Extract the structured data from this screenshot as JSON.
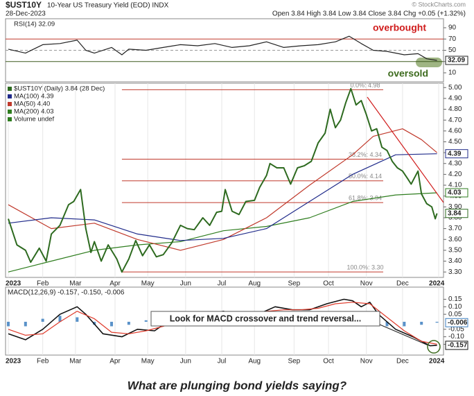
{
  "header": {
    "symbol": "$UST10Y",
    "description": "10-Year US Treasury Yield (EOD) INDX",
    "date": "28-Dec-2023",
    "quote": "Open 3.84 High 3.84 Low 3.84 Close 3.84 Chg +0.05 (+1.32%)",
    "watermark": "© StockCharts.com"
  },
  "chart_data": [
    {
      "type": "line",
      "panel": "rsi",
      "xlim": [
        -1.6,
        252.8
      ],
      "ylim": [
        -6,
        106
      ],
      "yticks": [
        90,
        70,
        50,
        30,
        10
      ],
      "reference_lines": [
        {
          "value": 70,
          "color": "#c0392b"
        },
        {
          "value": 30,
          "color": "#3d5a1e"
        },
        {
          "value": 50,
          "color": "#999999"
        }
      ],
      "annotations": [
        {
          "text": "overbought",
          "color": "#d01c1c"
        },
        {
          "text": "oversold",
          "color": "#3d6b1e"
        }
      ],
      "series": [
        {
          "label": "RSI(14) 32.09",
          "color": "#222222",
          "boxed": true,
          "x": [
            0,
            10,
            20,
            30,
            40,
            45,
            50,
            60,
            66,
            70,
            80,
            90,
            100,
            110,
            120,
            130,
            140,
            150,
            160,
            170,
            180,
            190,
            198,
            205,
            212,
            220,
            230,
            238,
            243,
            249
          ],
          "values": [
            52,
            45,
            60,
            62,
            68,
            50,
            45,
            55,
            42,
            52,
            50,
            55,
            60,
            58,
            62,
            55,
            58,
            65,
            55,
            58,
            60,
            65,
            75,
            62,
            50,
            48,
            42,
            44,
            35,
            32.09
          ]
        }
      ]
    },
    {
      "type": "line",
      "panel": "price",
      "xlim": [
        -1.6,
        252.8
      ],
      "ylim": [
        3.25,
        5.04
      ],
      "yticks": [
        {
          "value": 5.0,
          "label": "5.00"
        },
        {
          "value": 4.9,
          "label": "4.90"
        },
        {
          "value": 4.8,
          "label": "4.80"
        },
        {
          "value": 4.7,
          "label": "4.70"
        },
        {
          "value": 4.6,
          "label": "4.60"
        },
        {
          "value": 4.5,
          "label": "4.50"
        },
        {
          "value": 4.4,
          "label": "4.40"
        },
        {
          "value": 4.3,
          "label": "4.30"
        },
        {
          "value": 4.2,
          "label": "4.20"
        },
        {
          "value": 4.1,
          "label": "4.10"
        },
        {
          "value": 4.0,
          "label": "4.00"
        },
        {
          "value": 3.9,
          "label": "3.90"
        },
        {
          "value": 3.8,
          "label": "3.80"
        },
        {
          "value": 3.7,
          "label": "3.70"
        },
        {
          "value": 3.6,
          "label": "3.60"
        },
        {
          "value": 3.5,
          "label": "3.50"
        },
        {
          "value": 3.4,
          "label": "3.40"
        },
        {
          "value": 3.3,
          "label": "3.30"
        }
      ],
      "xticks": [
        {
          "value": 0,
          "label": "2023"
        },
        {
          "value": 20,
          "label": "Feb"
        },
        {
          "value": 39,
          "label": "Mar"
        },
        {
          "value": 62,
          "label": "Apr"
        },
        {
          "value": 81,
          "label": "May"
        },
        {
          "value": 103,
          "label": "Jun"
        },
        {
          "value": 124,
          "label": "Jul"
        },
        {
          "value": 143,
          "label": "Aug"
        },
        {
          "value": 166,
          "label": "Sep"
        },
        {
          "value": 186,
          "label": "Oct"
        },
        {
          "value": 208,
          "label": "Nov"
        },
        {
          "value": 229,
          "label": "Dec"
        },
        {
          "value": 250,
          "label": "2024"
        }
      ],
      "volume_label": "Volume undef",
      "fibonacci": [
        {
          "label": "0.0%: 4.98",
          "value": 4.98
        },
        {
          "label": "38.2%: 4.34",
          "value": 4.34
        },
        {
          "label": "50.0%: 4.14",
          "value": 4.14
        },
        {
          "label": "61.8%: 3.94",
          "value": 3.94
        },
        {
          "label": "100.0%: 3.30",
          "value": 3.3
        }
      ],
      "series": [
        {
          "label": "$UST10Y (Daily) 3.84 (28 Dec)",
          "color": "#2d6a1f",
          "width": 2,
          "boxed": true,
          "x": [
            0,
            5,
            10,
            13,
            18,
            22,
            25,
            30,
            35,
            38,
            42,
            45,
            48,
            50,
            54,
            58,
            63,
            66,
            70,
            74,
            78,
            82,
            86,
            90,
            95,
            100,
            104,
            108,
            113,
            117,
            121,
            124,
            126,
            130,
            134,
            138,
            143,
            146,
            150,
            152,
            156,
            160,
            164,
            168,
            172,
            176,
            180,
            184,
            187,
            190,
            193,
            196,
            199,
            202,
            205,
            208,
            211,
            214,
            217,
            220,
            223,
            226,
            229,
            232,
            234,
            238,
            240,
            243,
            246,
            248,
            249
          ],
          "values": [
            3.79,
            3.55,
            3.5,
            3.39,
            3.52,
            3.4,
            3.65,
            3.73,
            3.92,
            3.95,
            4.06,
            3.7,
            3.48,
            3.58,
            3.4,
            3.55,
            3.42,
            3.3,
            3.42,
            3.59,
            3.45,
            3.55,
            3.44,
            3.46,
            3.57,
            3.73,
            3.7,
            3.69,
            3.8,
            3.73,
            3.85,
            3.86,
            4.06,
            3.86,
            3.83,
            3.95,
            3.96,
            4.08,
            4.19,
            4.3,
            4.26,
            4.26,
            4.11,
            4.26,
            4.28,
            4.32,
            4.49,
            4.58,
            4.8,
            4.63,
            4.7,
            4.86,
            4.99,
            4.84,
            4.88,
            4.75,
            4.6,
            4.62,
            4.45,
            4.42,
            4.32,
            4.26,
            4.23,
            4.16,
            4.11,
            4.23,
            4.02,
            3.93,
            3.9,
            3.79,
            3.84
          ]
        },
        {
          "label": "MA(100) 4.39",
          "color": "#1f2a8a",
          "width": 1.2,
          "boxed": true,
          "x": [
            0,
            25,
            50,
            75,
            100,
            125,
            150,
            175,
            200,
            225,
            249
          ],
          "values": [
            3.75,
            3.8,
            3.78,
            3.65,
            3.59,
            3.61,
            3.7,
            3.95,
            4.2,
            4.38,
            4.39
          ]
        },
        {
          "label": "MA(50) 4.40",
          "color": "#c0392b",
          "width": 1.2,
          "boxed": false,
          "x": [
            0,
            25,
            50,
            75,
            100,
            125,
            150,
            175,
            200,
            212,
            229,
            240,
            249
          ],
          "values": [
            3.92,
            3.7,
            3.75,
            3.6,
            3.5,
            3.6,
            3.8,
            4.1,
            4.38,
            4.55,
            4.62,
            4.52,
            4.4
          ]
        },
        {
          "label": "MA(200) 4.03",
          "color": "#2e7d1e",
          "width": 1.2,
          "boxed": true,
          "x": [
            0,
            25,
            50,
            75,
            100,
            125,
            150,
            175,
            200,
            225,
            249
          ],
          "values": [
            3.3,
            3.4,
            3.5,
            3.55,
            3.58,
            3.68,
            3.72,
            3.8,
            3.95,
            4.01,
            4.03
          ]
        }
      ]
    },
    {
      "type": "macd",
      "panel": "macd",
      "xlim": [
        -1.6,
        252.8
      ],
      "ylim": [
        -0.222,
        0.231
      ],
      "yticks": [
        0.15,
        {
          "value": 0.1,
          "label": "0.10"
        },
        0.05,
        -0.05,
        {
          "value": -0.1,
          "label": "-0.10"
        },
        -0.15
      ],
      "xticks": [
        {
          "value": 0,
          "label": "2023"
        },
        {
          "value": 20,
          "label": "Feb"
        },
        {
          "value": 39,
          "label": "Mar"
        },
        {
          "value": 62,
          "label": "Apr"
        },
        {
          "value": 81,
          "label": "May"
        },
        {
          "value": 103,
          "label": "Jun"
        },
        {
          "value": 124,
          "label": "Jul"
        },
        {
          "value": 143,
          "label": "Aug"
        },
        {
          "value": 166,
          "label": "Sep"
        },
        {
          "value": 186,
          "label": "Oct"
        },
        {
          "value": 208,
          "label": "Nov"
        },
        {
          "value": 229,
          "label": "Dec"
        },
        {
          "value": 250,
          "label": "2024"
        }
      ],
      "legend": "MACD(12,26,9) -0.157, -0.150, -0.006",
      "annotation": "Look for MACD crossover and trend reversal...",
      "series": [
        {
          "kind": "line",
          "color": "#111111",
          "width": 1.6,
          "boxed": true,
          "x": [
            0,
            10,
            20,
            30,
            40,
            45,
            55,
            66,
            75,
            85,
            95,
            105,
            115,
            125,
            135,
            145,
            155,
            165,
            175,
            185,
            195,
            200,
            205,
            210,
            215,
            225,
            235,
            245,
            249
          ],
          "values": [
            -0.08,
            -0.12,
            -0.05,
            0.05,
            0.1,
            0.05,
            -0.08,
            -0.1,
            -0.05,
            -0.06,
            0.02,
            0.04,
            0.05,
            0.07,
            0.03,
            0.05,
            0.1,
            0.08,
            0.08,
            0.12,
            0.15,
            0.14,
            0.1,
            0.13,
            0.05,
            -0.05,
            -0.1,
            -0.16,
            -0.157
          ]
        },
        {
          "kind": "line",
          "color": "#e03a2a",
          "width": 1.2,
          "boxed": false,
          "x": [
            0,
            10,
            20,
            30,
            40,
            50,
            60,
            70,
            80,
            90,
            100,
            110,
            120,
            130,
            140,
            150,
            160,
            170,
            180,
            190,
            200,
            210,
            220,
            230,
            240,
            249
          ],
          "values": [
            -0.05,
            -0.09,
            -0.08,
            0,
            0.07,
            0.02,
            -0.07,
            -0.08,
            -0.06,
            -0.03,
            0.01,
            0.04,
            0.05,
            0.05,
            0.04,
            0.07,
            0.08,
            0.08,
            0.09,
            0.12,
            0.13,
            0.12,
            0.03,
            -0.06,
            -0.13,
            -0.15
          ]
        },
        {
          "kind": "histogram",
          "color": "#3d7fc0",
          "boxed": true,
          "x": [
            0,
            10,
            20,
            30,
            40,
            50,
            60,
            70,
            80,
            90,
            100,
            110,
            120,
            130,
            140,
            150,
            160,
            170,
            180,
            190,
            200,
            210,
            220,
            230,
            240,
            249
          ],
          "values": [
            -0.03,
            -0.03,
            0.02,
            0.04,
            0.03,
            -0.02,
            -0.03,
            -0.02,
            0.01,
            -0.01,
            0.01,
            0.01,
            0,
            0.02,
            -0.01,
            0.01,
            0.02,
            0,
            -0.01,
            0.02,
            0.02,
            0.01,
            -0.03,
            -0.03,
            -0.02,
            -0.006
          ]
        }
      ]
    }
  ],
  "caption": "What are plunging bond yields saying?"
}
